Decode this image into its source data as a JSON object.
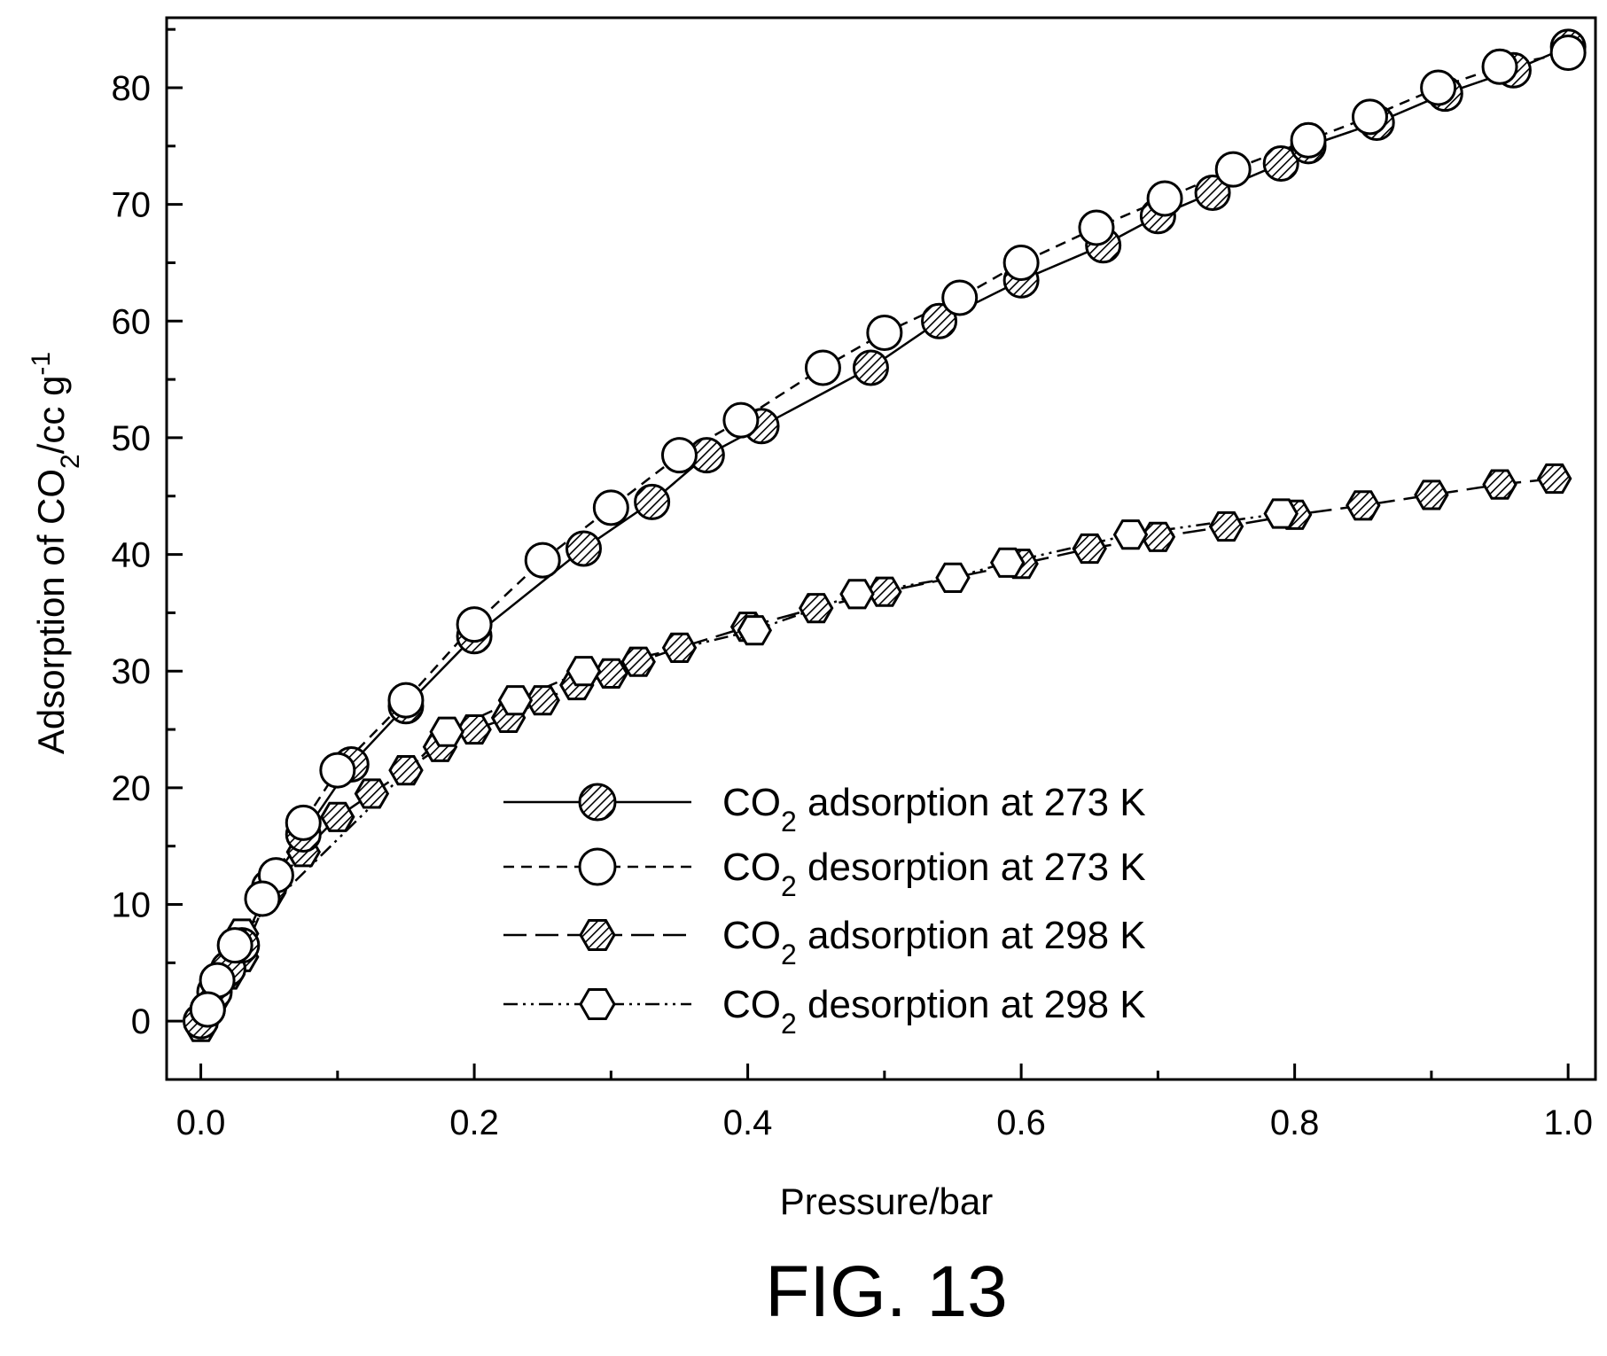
{
  "figure": {
    "caption": "FIG. 13"
  },
  "chart_data": {
    "type": "line",
    "xlabel": "Pressure/bar",
    "ylabel": {
      "prefix": "Adsorption of CO",
      "sub": "2",
      "suffix": "/cc g",
      "sup": "-1"
    },
    "xlim": [
      -0.025,
      1.02
    ],
    "ylim": [
      -5,
      86
    ],
    "xticks": [
      0.0,
      0.2,
      0.4,
      0.6,
      0.8,
      1.0
    ],
    "xtick_labels": [
      "0.0",
      "0.2",
      "0.4",
      "0.6",
      "0.8",
      "1.0"
    ],
    "yticks": [
      0,
      10,
      20,
      30,
      40,
      50,
      60,
      70,
      80
    ],
    "ytick_labels": [
      "0",
      "10",
      "20",
      "30",
      "40",
      "50",
      "60",
      "70",
      "80"
    ],
    "grid": false,
    "legend_position": "lower-right",
    "series": [
      {
        "name": {
          "prefix": "CO",
          "sub": "2",
          "suffix": " adsorption at 273 K"
        },
        "marker": "circle-hatched",
        "line": "solid",
        "x": [
          0.0,
          0.005,
          0.01,
          0.02,
          0.03,
          0.05,
          0.075,
          0.11,
          0.15,
          0.2,
          0.28,
          0.33,
          0.37,
          0.41,
          0.49,
          0.54,
          0.6,
          0.66,
          0.7,
          0.74,
          0.79,
          0.81,
          0.86,
          0.91,
          0.96,
          1.0
        ],
        "y": [
          0.0,
          1.0,
          2.5,
          4.5,
          6.5,
          11.5,
          16.0,
          22.0,
          27.0,
          33.0,
          40.5,
          44.5,
          48.5,
          51.0,
          56.0,
          60.0,
          63.5,
          66.5,
          69.0,
          71.0,
          73.5,
          75.0,
          77.0,
          79.5,
          81.5,
          83.5
        ]
      },
      {
        "name": {
          "prefix": "CO",
          "sub": "2",
          "suffix": " desorption at 273 K"
        },
        "marker": "circle-open",
        "line": "dashed",
        "x": [
          1.0,
          0.95,
          0.905,
          0.855,
          0.81,
          0.755,
          0.705,
          0.655,
          0.6,
          0.555,
          0.5,
          0.455,
          0.395,
          0.35,
          0.25,
          0.3,
          0.2,
          0.15,
          0.1,
          0.075,
          0.055,
          0.045,
          0.025,
          0.012,
          0.005
        ],
        "y": [
          83.0,
          81.8,
          80.0,
          77.5,
          75.5,
          73.0,
          70.5,
          68.0,
          65.0,
          62.0,
          59.0,
          56.0,
          51.5,
          48.5,
          39.5,
          44.0,
          34.0,
          27.5,
          21.5,
          17.0,
          12.5,
          10.5,
          6.5,
          3.5,
          1.0
        ]
      },
      {
        "name": {
          "prefix": "CO",
          "sub": "2",
          "suffix": " adsorption at 298 K"
        },
        "marker": "hexagon-hatched",
        "line": "long-dash",
        "x": [
          0.0,
          0.01,
          0.02,
          0.03,
          0.05,
          0.075,
          0.1,
          0.125,
          0.15,
          0.175,
          0.2,
          0.225,
          0.25,
          0.275,
          0.3,
          0.32,
          0.35,
          0.4,
          0.45,
          0.5,
          0.6,
          0.65,
          0.7,
          0.75,
          0.8,
          0.85,
          0.9,
          0.95,
          0.99
        ],
        "y": [
          0.0,
          2.0,
          4.0,
          5.5,
          11.0,
          14.5,
          17.5,
          19.5,
          21.5,
          23.5,
          25.0,
          26.0,
          27.5,
          28.8,
          29.8,
          30.8,
          32.0,
          33.8,
          35.4,
          36.8,
          39.2,
          40.5,
          41.5,
          42.4,
          43.4,
          44.2,
          45.1,
          46.0,
          46.5
        ]
      },
      {
        "name": {
          "prefix": "CO",
          "sub": "2",
          "suffix": " desorption at 298 K"
        },
        "marker": "hexagon-open",
        "line": "dash-dot-dot",
        "x": [
          0.79,
          0.68,
          0.59,
          0.55,
          0.48,
          0.405,
          0.28,
          0.23,
          0.18,
          0.03,
          0.0
        ],
        "y": [
          43.5,
          41.7,
          39.3,
          38.0,
          36.6,
          33.5,
          30.0,
          27.5,
          24.8,
          7.5,
          -0.5
        ]
      }
    ]
  }
}
